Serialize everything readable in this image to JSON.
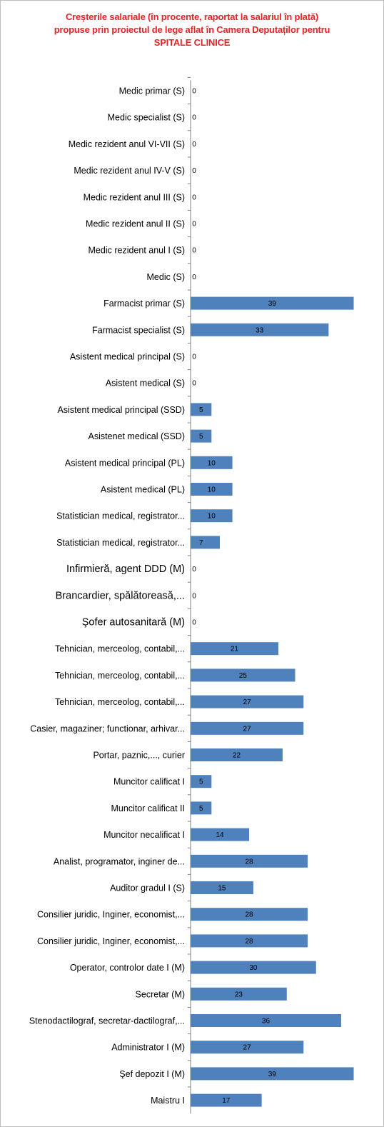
{
  "chart_data": {
    "type": "bar",
    "orientation": "horizontal",
    "title_lines": [
      "Creșterile salariale (în procente, raportat la salariul în plată)",
      "propuse prin proiectul de lege aflat în Camera Deputaților pentru",
      "SPITALE  CLINICE"
    ],
    "xlim": [
      0,
      40
    ],
    "grid": false,
    "bar_color": "#4f81bd",
    "title_color": "#e8232a",
    "categories": [
      "Medic primar (S)",
      "Medic specialist (S)",
      "Medic rezident anul VI-VII (S)",
      "Medic rezident anul IV-V (S)",
      "Medic rezident anul III (S)",
      "Medic rezident anul II (S)",
      "Medic rezident anul I (S)",
      "Medic (S)",
      "Farmacist primar (S)",
      "Farmacist specialist (S)",
      "Asistent medical principal (S)",
      "Asistent medical (S)",
      "Asistent medical principal (SSD)",
      "Asistenet medical (SSD)",
      "Asistent medical principal (PL)",
      "Asistent medical (PL)",
      "Statistician medical, registrator...",
      "Statistician medical, registrator...",
      "Infirmieră, agent DDD  (M)",
      "Brancardier, spălătoreasă,...",
      "Şofer autosanitară  (M)",
      "Tehnician, merceolog, contabil,...",
      "Tehnician, merceolog, contabil,...",
      "Tehnician, merceolog, contabil,...",
      "Casier, magaziner; functionar, arhivar...",
      "Portar, paznic,..., curier",
      "Muncitor calificat I",
      "Muncitor calificat II",
      "Muncitor necalificat I",
      "Analist, programator, inginer de...",
      "Auditor gradul I (S)",
      "Consilier juridic, Inginer, economist,...",
      "Consilier juridic, Inginer, economist,...",
      "Operator, controlor date I (M)",
      "Secretar (M)",
      "Stenodactilograf, secretar-dactilograf,...",
      "Administrator I (M)",
      "Şef depozit I (M)",
      "Maistru I"
    ],
    "values": [
      0,
      0,
      0,
      0,
      0,
      0,
      0,
      0,
      39,
      33,
      0,
      0,
      5,
      5,
      10,
      10,
      10,
      7,
      0,
      0,
      0,
      21,
      25,
      27,
      27,
      22,
      5,
      5,
      14,
      28,
      15,
      28,
      28,
      30,
      23,
      36,
      27,
      39,
      17
    ],
    "value_labels": [
      "0",
      "0",
      "0",
      "0",
      "0",
      "0",
      "0",
      "0",
      "39",
      "33",
      "0",
      "0",
      "5",
      "5",
      "10",
      "10",
      "10",
      "7",
      "0",
      "0",
      "0",
      "21",
      "25",
      "27",
      "27",
      "22",
      "5",
      "5",
      "14",
      "28",
      "15",
      "28",
      "28",
      "30",
      "23",
      "36",
      "27",
      "39",
      "17"
    ]
  }
}
